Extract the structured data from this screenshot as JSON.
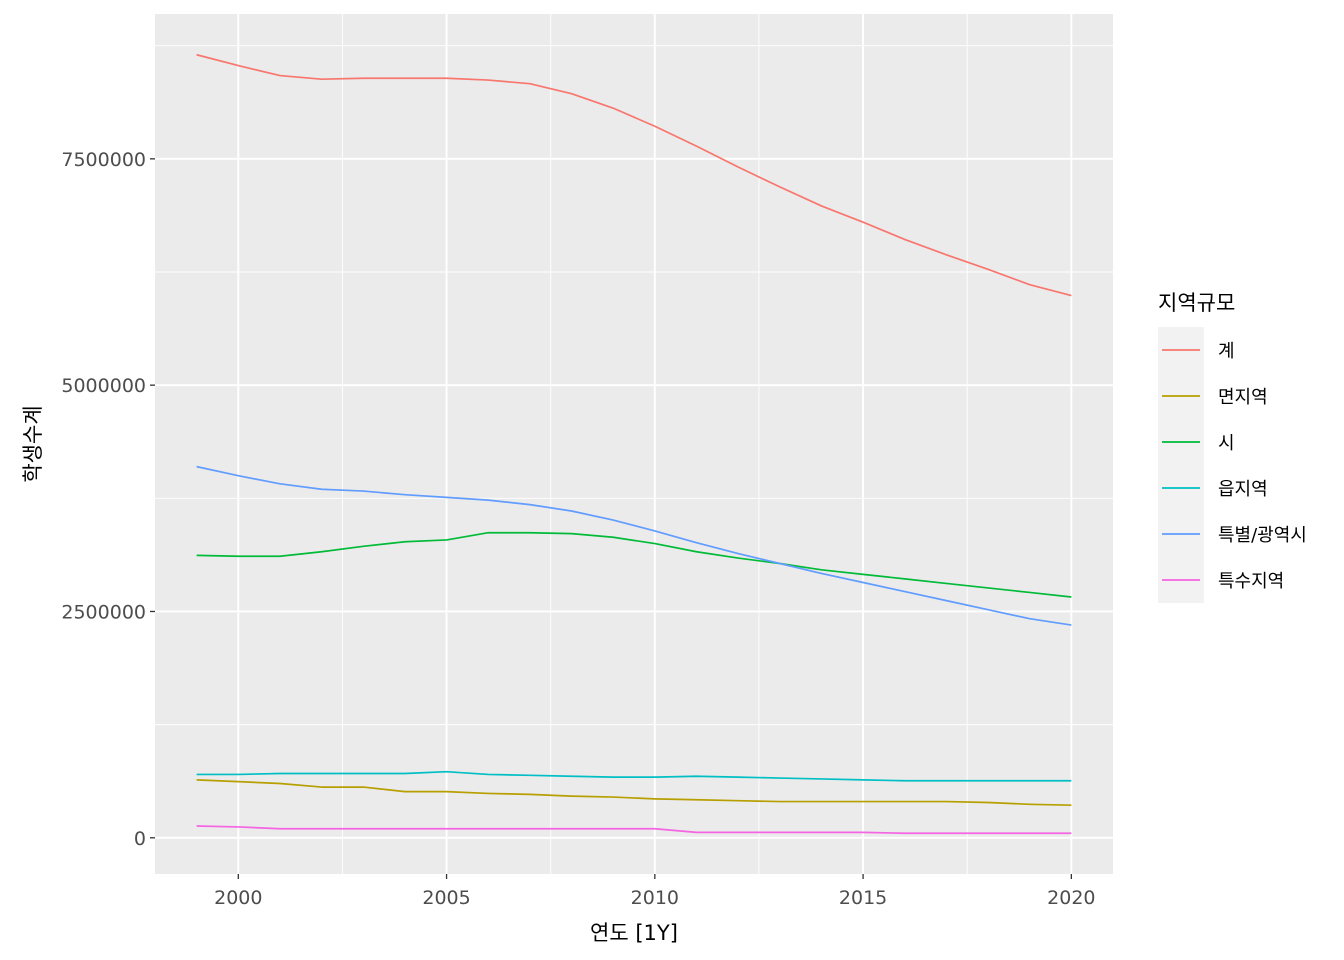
{
  "chart_data": {
    "type": "line",
    "xlabel": "연도 [1Y]",
    "ylabel": "학생수계",
    "xlim": [
      1998,
      2021
    ],
    "ylim": [
      -400000,
      9100000
    ],
    "x_ticks": [
      2000,
      2005,
      2010,
      2015,
      2020
    ],
    "x_tick_labels": [
      "2000",
      "2005",
      "2010",
      "2015",
      "2020"
    ],
    "y_ticks": [
      0,
      2500000,
      5000000,
      7500000
    ],
    "y_tick_labels": [
      "0",
      "2500000",
      "5000000",
      "7500000"
    ],
    "grid": true,
    "legend": {
      "title": "지역규모",
      "position": "right"
    },
    "x": [
      1999,
      2000,
      2001,
      2002,
      2003,
      2004,
      2005,
      2006,
      2007,
      2008,
      2009,
      2010,
      2011,
      2012,
      2013,
      2014,
      2015,
      2016,
      2017,
      2018,
      2019,
      2020
    ],
    "series": [
      {
        "name": "계",
        "color": "#F8766D",
        "values": [
          8650000,
          8530000,
          8420000,
          8380000,
          8390000,
          8390000,
          8390000,
          8370000,
          8330000,
          8220000,
          8060000,
          7860000,
          7640000,
          7410000,
          7190000,
          6980000,
          6800000,
          6610000,
          6440000,
          6280000,
          6110000,
          5990000
        ]
      },
      {
        "name": "면지역",
        "color": "#B79F00",
        "values": [
          640000,
          620000,
          600000,
          560000,
          560000,
          510000,
          510000,
          490000,
          480000,
          460000,
          450000,
          430000,
          420000,
          410000,
          400000,
          400000,
          400000,
          400000,
          400000,
          390000,
          370000,
          360000
        ]
      },
      {
        "name": "시",
        "color": "#00BA38",
        "values": [
          3120000,
          3110000,
          3110000,
          3160000,
          3220000,
          3270000,
          3290000,
          3370000,
          3370000,
          3360000,
          3320000,
          3250000,
          3160000,
          3090000,
          3030000,
          2960000,
          2910000,
          2860000,
          2810000,
          2760000,
          2710000,
          2660000
        ]
      },
      {
        "name": "읍지역",
        "color": "#00BFC4",
        "values": [
          700000,
          700000,
          710000,
          710000,
          710000,
          710000,
          730000,
          700000,
          690000,
          680000,
          670000,
          670000,
          680000,
          670000,
          660000,
          650000,
          640000,
          630000,
          630000,
          630000,
          630000,
          630000
        ]
      },
      {
        "name": "특별/광역시",
        "color": "#619CFF",
        "values": [
          4100000,
          4000000,
          3910000,
          3850000,
          3830000,
          3790000,
          3760000,
          3730000,
          3680000,
          3610000,
          3510000,
          3390000,
          3260000,
          3140000,
          3030000,
          2920000,
          2820000,
          2720000,
          2620000,
          2520000,
          2420000,
          2350000
        ]
      },
      {
        "name": "특수지역",
        "color": "#F564E3",
        "values": [
          130000,
          120000,
          100000,
          100000,
          100000,
          100000,
          100000,
          100000,
          100000,
          100000,
          100000,
          100000,
          60000,
          60000,
          60000,
          60000,
          60000,
          50000,
          50000,
          50000,
          50000,
          50000
        ]
      }
    ]
  }
}
